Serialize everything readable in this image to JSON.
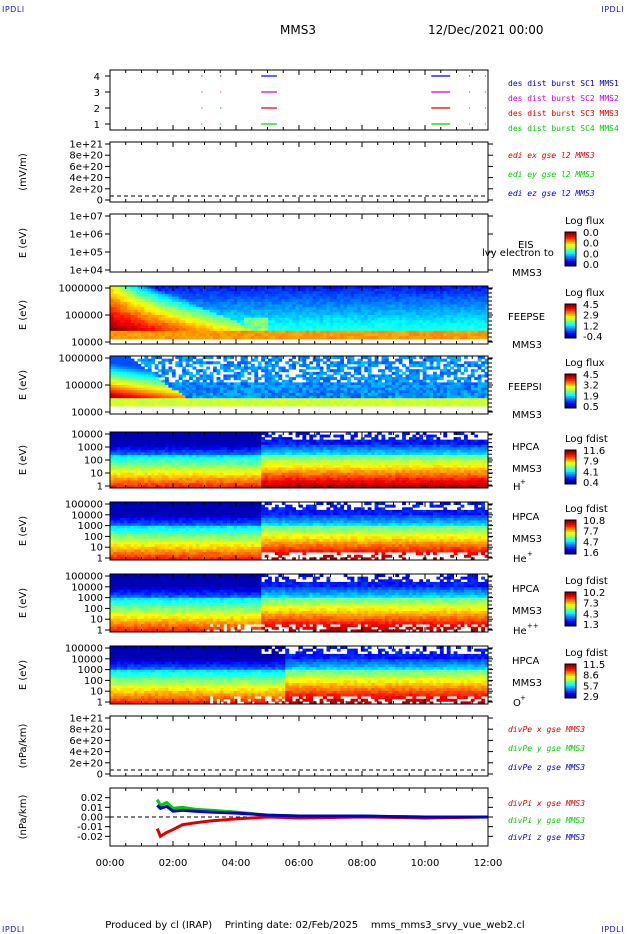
{
  "header": {
    "corner_tl": "IPDLI",
    "corner_tr": "IPDLI",
    "corner_bl": "IPDLI",
    "corner_br": "IPDLI",
    "spacecraft": "MMS3",
    "datetime": "12/Dec/2021 00:00"
  },
  "footer": {
    "produced_by": "Produced by cl (IRAP)",
    "printing_date": "Printing date: 02/Feb/2025",
    "script_name": "mms_mms3_srvy_vue_web2.cl"
  },
  "colors": {
    "sc1": "#0000cc",
    "sc2": "#cc00cc",
    "sc3": "#dd0000",
    "sc4": "#00cc00",
    "x": "#dd0000",
    "y": "#00cc00",
    "z": "#0000cc"
  },
  "chart_data": [
    {
      "type": "scatter",
      "panel": "burst-coverage",
      "ylim": [
        0.5,
        4.5
      ],
      "yticks": [
        "1",
        "2",
        "3",
        "4"
      ],
      "legend_location": "right",
      "series": [
        {
          "name": "des dist burst SC1 MMS1",
          "level": 4,
          "intervals": [
            [
              4.8,
              5.3
            ],
            [
              10.2,
              10.8
            ]
          ]
        },
        {
          "name": "des dist burst SC2 MMS2",
          "level": 3,
          "intervals": [
            [
              4.8,
              5.3
            ],
            [
              10.2,
              10.8
            ]
          ]
        },
        {
          "name": "des dist burst SC3 MMS3",
          "level": 2,
          "intervals": [
            [
              4.8,
              5.3
            ],
            [
              10.2,
              10.8
            ]
          ]
        },
        {
          "name": "des dist burst SC4 MMS4",
          "level": 1,
          "intervals": [
            [
              4.8,
              5.3
            ],
            [
              10.2,
              10.8
            ]
          ]
        }
      ]
    },
    {
      "type": "line",
      "panel": "edi-field",
      "ylabel": "(mV/m)",
      "yticks": [
        "1e+21",
        "8e+20",
        "6e+20",
        "4e+20",
        "2e+20",
        "0"
      ],
      "legend_location": "right",
      "series": [
        {
          "name": "edi ex gse l2 MMS3",
          "values": []
        },
        {
          "name": "edi ey gse l2 MMS3",
          "values": []
        },
        {
          "name": "edi ez gse l2 MMS3",
          "values": []
        }
      ]
    },
    {
      "type": "heatmap",
      "panel": "eis",
      "ylabel": "E (eV)",
      "yticks": [
        "1e+07",
        "1e+06",
        "1e+05",
        "1e+04"
      ],
      "ylog": true,
      "labels": [
        "EIS",
        "MMS3"
      ],
      "overlay_text": "lvy electron to",
      "colorbar": {
        "title": "Log flux",
        "ticks": [
          "0.0",
          "0.0",
          "0.0",
          "0.0"
        ]
      }
    },
    {
      "type": "heatmap",
      "panel": "feeps-electron",
      "ylabel": "E (eV)",
      "yticks": [
        "1000000",
        "100000",
        "10000"
      ],
      "ylog": true,
      "labels": [
        "FEEPSE",
        "MMS3"
      ],
      "colorbar": {
        "title": "Log flux",
        "ticks": [
          "4.5",
          "2.9",
          "1.2",
          "-0.4"
        ]
      }
    },
    {
      "type": "heatmap",
      "panel": "feeps-ion",
      "ylabel": "E (eV)",
      "yticks": [
        "1000000",
        "100000",
        "10000"
      ],
      "ylog": true,
      "labels": [
        "FEEPSI",
        "MMS3"
      ],
      "colorbar": {
        "title": "Log flux",
        "ticks": [
          "4.5",
          "3.2",
          "1.9",
          "0.5"
        ]
      }
    },
    {
      "type": "heatmap",
      "panel": "hpca-h",
      "ylabel": "E (eV)",
      "yticks": [
        "10000",
        "1000",
        "100",
        "10",
        "1"
      ],
      "ylog": true,
      "labels": [
        "HPCA",
        "MMS3"
      ],
      "species": "H",
      "species_sup": "+",
      "colorbar": {
        "title": "Log fdist",
        "ticks": [
          "11.6",
          "7.9",
          "4.1",
          "0.4"
        ]
      }
    },
    {
      "type": "heatmap",
      "panel": "hpca-he",
      "ylabel": "E (eV)",
      "yticks": [
        "100000",
        "10000",
        "1000",
        "100",
        "10",
        "1"
      ],
      "ylog": true,
      "labels": [
        "HPCA",
        "MMS3"
      ],
      "species": "He",
      "species_sup": "+",
      "colorbar": {
        "title": "Log fdist",
        "ticks": [
          "10.8",
          "7.7",
          "4.7",
          "1.6"
        ]
      }
    },
    {
      "type": "heatmap",
      "panel": "hpca-he2",
      "ylabel": "E (eV)",
      "yticks": [
        "100000",
        "10000",
        "1000",
        "100",
        "10",
        "1"
      ],
      "ylog": true,
      "labels": [
        "HPCA",
        "MMS3"
      ],
      "species": "He",
      "species_sup": "++",
      "colorbar": {
        "title": "Log fdist",
        "ticks": [
          "10.2",
          "7.3",
          "4.3",
          "1.3"
        ]
      }
    },
    {
      "type": "heatmap",
      "panel": "hpca-o",
      "ylabel": "E (eV)",
      "yticks": [
        "100000",
        "10000",
        "1000",
        "100",
        "10",
        "1"
      ],
      "ylog": true,
      "labels": [
        "HPCA",
        "MMS3"
      ],
      "species": "O",
      "species_sup": "+",
      "colorbar": {
        "title": "Log fdist",
        "ticks": [
          "11.5",
          "8.6",
          "5.7",
          "2.9"
        ]
      }
    },
    {
      "type": "line",
      "panel": "divpe",
      "ylabel": "(nPa/km)",
      "yticks": [
        "1e+21",
        "8e+20",
        "6e+20",
        "4e+20",
        "2e+20",
        "0"
      ],
      "legend_location": "right",
      "series": [
        {
          "name": "divPe x gse MMS3",
          "values": []
        },
        {
          "name": "divPe y gse MMS3",
          "values": []
        },
        {
          "name": "divPe z gse MMS3",
          "values": []
        }
      ]
    },
    {
      "type": "line",
      "panel": "divpi",
      "ylabel": "(nPa/km)",
      "ylim": [
        -0.03,
        0.03
      ],
      "yticks": [
        "0.02",
        "0.01",
        "0.00",
        "-0.01",
        "-0.02"
      ],
      "xlim": [
        0,
        12
      ],
      "xticks": [
        "00:00",
        "02:00",
        "04:00",
        "06:00",
        "08:00",
        "10:00",
        "12:00"
      ],
      "legend_location": "right",
      "series": [
        {
          "name": "divPi x gse MMS3",
          "x": [
            1.5,
            1.6,
            1.8,
            2.0,
            2.3,
            2.7,
            3.2,
            4.0,
            5.0,
            6.0,
            8.0,
            10.0,
            12.0
          ],
          "values": [
            -0.012,
            -0.02,
            -0.016,
            -0.013,
            -0.008,
            -0.006,
            -0.004,
            -0.002,
            0.0,
            -0.001,
            0.0,
            -0.001,
            0.0
          ]
        },
        {
          "name": "divPi y gse MMS3",
          "x": [
            1.5,
            1.6,
            1.8,
            2.0,
            2.3,
            2.7,
            3.2,
            4.0,
            5.0,
            6.0,
            8.0,
            10.0,
            12.0
          ],
          "values": [
            0.018,
            0.012,
            0.015,
            0.009,
            0.01,
            0.008,
            0.007,
            0.005,
            0.002,
            0.001,
            0.001,
            0.0,
            0.0
          ]
        },
        {
          "name": "divPi z gse MMS3",
          "x": [
            1.5,
            1.6,
            1.8,
            2.0,
            2.3,
            2.7,
            3.2,
            4.0,
            5.0,
            6.0,
            8.0,
            10.0,
            12.0
          ],
          "values": [
            0.012,
            0.009,
            0.011,
            0.006,
            0.007,
            0.006,
            0.005,
            0.004,
            0.002,
            0.001,
            0.001,
            0.0,
            0.0
          ]
        }
      ]
    }
  ]
}
